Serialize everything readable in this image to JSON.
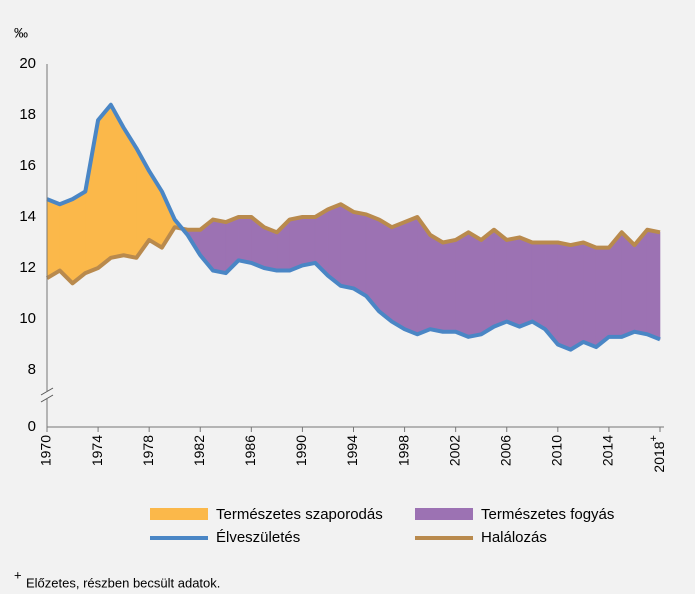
{
  "chart_data": {
    "type": "line",
    "unit_label": "‰",
    "x": [
      1970,
      1971,
      1972,
      1973,
      1974,
      1975,
      1976,
      1977,
      1978,
      1979,
      1980,
      1981,
      1982,
      1983,
      1984,
      1985,
      1986,
      1987,
      1988,
      1989,
      1990,
      1991,
      1992,
      1993,
      1994,
      1995,
      1996,
      1997,
      1998,
      1999,
      2000,
      2001,
      2002,
      2003,
      2004,
      2005,
      2006,
      2007,
      2008,
      2009,
      2010,
      2011,
      2012,
      2013,
      2014,
      2015,
      2016,
      2017,
      2018
    ],
    "xlim": [
      1970,
      2018
    ],
    "xticks": [
      1970,
      1974,
      1978,
      1982,
      1986,
      1990,
      1994,
      1998,
      2002,
      2006,
      2010,
      2014,
      {
        "value": 2018,
        "label": "2018+"
      }
    ],
    "ylim": [
      0,
      20
    ],
    "axis_break": [
      0,
      8
    ],
    "yticks": [
      0,
      8,
      10,
      12,
      14,
      16,
      18,
      20
    ],
    "series": [
      {
        "name": "Élveszületés",
        "color": "#4a86c5",
        "values": [
          14.7,
          14.5,
          14.7,
          15.0,
          17.8,
          18.4,
          17.5,
          16.7,
          15.8,
          15.0,
          13.9,
          13.3,
          12.5,
          11.9,
          11.8,
          12.3,
          12.2,
          12.0,
          11.9,
          11.9,
          12.1,
          12.2,
          11.7,
          11.3,
          11.2,
          10.9,
          10.3,
          9.9,
          9.6,
          9.4,
          9.6,
          9.5,
          9.5,
          9.3,
          9.4,
          9.7,
          9.9,
          9.7,
          9.9,
          9.6,
          9.0,
          8.8,
          9.1,
          8.9,
          9.3,
          9.3,
          9.5,
          9.4,
          9.2
        ]
      },
      {
        "name": "Halálozás",
        "color": "#b98a4d",
        "values": [
          11.6,
          11.9,
          11.4,
          11.8,
          12.0,
          12.4,
          12.5,
          12.4,
          13.1,
          12.8,
          13.6,
          13.5,
          13.5,
          13.9,
          13.8,
          14.0,
          14.0,
          13.6,
          13.4,
          13.9,
          14.0,
          14.0,
          14.3,
          14.5,
          14.2,
          14.1,
          13.9,
          13.6,
          13.8,
          14.0,
          13.3,
          13.0,
          13.1,
          13.4,
          13.1,
          13.5,
          13.1,
          13.2,
          13.0,
          13.0,
          13.0,
          12.9,
          13.0,
          12.8,
          12.8,
          13.4,
          12.9,
          13.5,
          13.4
        ]
      }
    ],
    "areas": [
      {
        "name": "Természetes szaporodás",
        "color": "#fbb84a"
      },
      {
        "name": "Természetes fogyás",
        "color": "#9c72b3"
      }
    ],
    "note_marker": "+",
    "footnote": "Előzetes, részben becsült adatok."
  }
}
